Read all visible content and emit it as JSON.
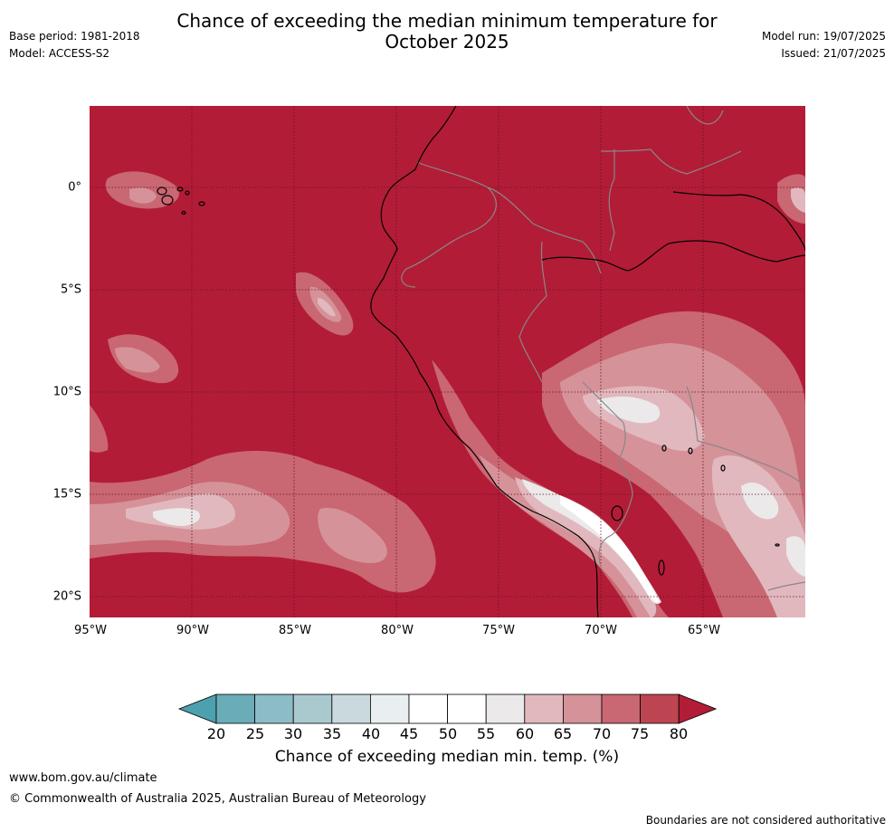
{
  "title_line1": "Chance of exceeding the median minimum temperature for",
  "title_line2": "October 2025",
  "base_period": "Base period: 1981-2018",
  "model": "Model: ACCESS-S2",
  "model_run": "Model run: 19/07/2025",
  "issued": "Issued: 21/07/2025",
  "lat_labels": [
    "0°",
    "5°S",
    "10°S",
    "15°S",
    "20°S"
  ],
  "lon_labels": [
    "95°W",
    "90°W",
    "85°W",
    "80°W",
    "75°W",
    "70°W",
    "65°W"
  ],
  "colorbar": {
    "ticks": [
      "20",
      "25",
      "30",
      "35",
      "40",
      "45",
      "50",
      "55",
      "60",
      "65",
      "70",
      "75",
      "80"
    ],
    "title": "Chance of exceeding median min. temp. (%)",
    "colors": [
      "#4da0ad",
      "#6aadb9",
      "#8cbcc6",
      "#aac9cf",
      "#c9d9dd",
      "#e9eef0",
      "#ffffff",
      "#ffffff",
      "#ebe9ea",
      "#e1b8bd",
      "#d59299",
      "#c96772",
      "#bd4552",
      "#b21c37"
    ]
  },
  "footer": {
    "url": "www.bom.gov.au/climate",
    "copyright": "© Commonwealth of Australia 2025, Australian Bureau of Meteorology",
    "boundaries": "Boundaries are not considered authoritative"
  }
}
